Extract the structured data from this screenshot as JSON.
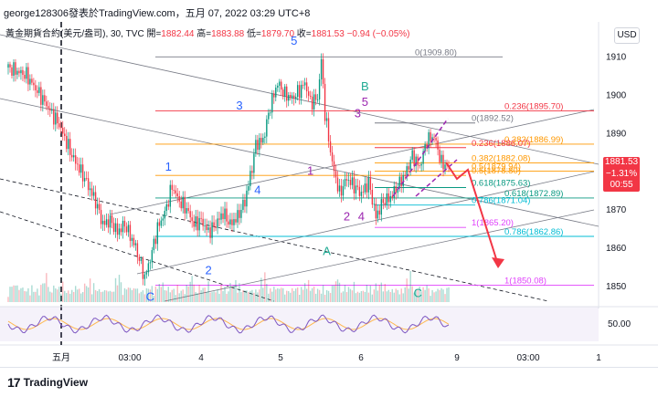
{
  "header": {
    "text": "george128306發表於TradingView.com，五月 07, 2022 03:29 UTC+8"
  },
  "legend": {
    "title": "黃金期貨合約(美元/盎司), 30, TVC",
    "open_label": "開",
    "open": "1882.44",
    "high_label": "高",
    "high": "1883.88",
    "low_label": "低",
    "low": "1879.70",
    "close_label": "收",
    "close": "1881.53",
    "change": "−0.94 (−0.05%)"
  },
  "currency": "USD",
  "price_tag": {
    "price": "1881.53",
    "pct": "−1.31%",
    "countdown": "00:55"
  },
  "brand": "TradingView",
  "colors": {
    "up": "#089981",
    "down": "#f23645",
    "wave_blue": "#2962ff",
    "wave_teal": "#22ab94",
    "wave_purple": "#9c27b0",
    "fib_red": "#f23645",
    "fib_orange": "#ff9800",
    "fib_green": "#089981",
    "fib_cyan": "#00bcd4",
    "fib_gray": "#787b86",
    "fib_magenta": "#e040fb",
    "osc_line": "#7e57c2",
    "osc_signal": "#ffb74d"
  },
  "chart_data": {
    "type": "candlestick",
    "instrument": "黃金期貨合約(美元/盎司)",
    "timeframe": "30",
    "y_ticks": [
      1850,
      1860,
      1870,
      1880,
      1890,
      1900,
      1910
    ],
    "y_range": [
      1844,
      1918
    ],
    "x_tick_labels": [
      "五月",
      "03:00",
      "4",
      "5",
      "6",
      "9",
      "03:00",
      "1"
    ],
    "price_path": [
      [
        0,
        1907
      ],
      [
        10,
        1905
      ],
      [
        20,
        1898
      ],
      [
        28,
        1892
      ],
      [
        35,
        1884
      ],
      [
        42,
        1878
      ],
      [
        48,
        1872
      ],
      [
        52,
        1866
      ],
      [
        56,
        1867
      ],
      [
        60,
        1864
      ],
      [
        64,
        1866
      ],
      [
        70,
        1860
      ],
      [
        75,
        1852
      ],
      [
        78,
        1857
      ],
      [
        82,
        1865
      ],
      [
        86,
        1869
      ],
      [
        90,
        1876
      ],
      [
        94,
        1872
      ],
      [
        98,
        1870
      ],
      [
        102,
        1866
      ],
      [
        106,
        1867
      ],
      [
        110,
        1864
      ],
      [
        114,
        1866
      ],
      [
        118,
        1869
      ],
      [
        122,
        1866
      ],
      [
        126,
        1868
      ],
      [
        130,
        1872
      ],
      [
        134,
        1881
      ],
      [
        136,
        1887
      ],
      [
        140,
        1888
      ],
      [
        144,
        1897
      ],
      [
        148,
        1903
      ],
      [
        152,
        1900
      ],
      [
        156,
        1899
      ],
      [
        160,
        1901
      ],
      [
        163,
        1903
      ],
      [
        166,
        1898
      ],
      [
        170,
        1899
      ],
      [
        172,
        1909
      ],
      [
        174,
        1895
      ],
      [
        178,
        1882
      ],
      [
        182,
        1874
      ],
      [
        186,
        1878
      ],
      [
        190,
        1876
      ],
      [
        194,
        1874
      ],
      [
        198,
        1877
      ],
      [
        202,
        1868
      ],
      [
        206,
        1872
      ],
      [
        210,
        1873
      ],
      [
        214,
        1876
      ],
      [
        218,
        1879
      ],
      [
        222,
        1884
      ],
      [
        226,
        1881
      ],
      [
        230,
        1888
      ],
      [
        234,
        1889
      ],
      [
        238,
        1882
      ],
      [
        242,
        1881
      ]
    ],
    "total_bars": 243,
    "volume_levels": [
      0.25,
      0.3,
      0.35,
      0.4,
      0.3,
      0.35,
      0.5,
      0.45,
      0.4,
      0.55,
      0.6,
      0.5,
      0.4,
      0.7,
      0.55,
      0.5,
      0.45,
      0.4,
      0.35,
      0.5,
      0.6,
      0.55,
      0.45,
      0.35,
      0.3,
      0.35,
      0.4,
      0.9,
      0.5,
      0.45,
      0.4,
      0.35,
      0.4,
      0.5,
      0.6,
      0.7,
      0.45,
      0.4,
      0.35,
      0.3
    ],
    "fib_levels": [
      {
        "label": "0(1909.80)",
        "value": 1909.8,
        "color_key": "fib_gray"
      },
      {
        "label": "0.236(1895.70)",
        "value": 1895.7,
        "color_key": "fib_red"
      },
      {
        "label": "0(1892.52)",
        "value": 1892.52,
        "color_key": "fib_gray"
      },
      {
        "label": "0.382(1886.99)",
        "value": 1886.99,
        "color_key": "fib_orange"
      },
      {
        "label": "0.236(1886.07)",
        "value": 1886.07,
        "color_key": "fib_red"
      },
      {
        "label": "0.382(1882.08)",
        "value": 1882.08,
        "color_key": "fib_orange"
      },
      {
        "label": "0.5(1879.94)",
        "value": 1879.94,
        "color_key": "fib_orange"
      },
      {
        "label": "0.5(1878.80)",
        "value": 1878.8,
        "color_key": "fib_orange"
      },
      {
        "label": "0.618(1875.63)",
        "value": 1875.63,
        "color_key": "fib_green"
      },
      {
        "label": "0.618(1872.89)",
        "value": 1872.89,
        "color_key": "fib_green"
      },
      {
        "label": "0.786(1871.04)",
        "value": 1871.04,
        "color_key": "fib_cyan"
      },
      {
        "label": "1(1865.20)",
        "value": 1865.2,
        "color_key": "fib_magenta"
      },
      {
        "label": "0.786(1862.86)",
        "value": 1862.86,
        "color_key": "fib_cyan"
      },
      {
        "label": "1(1850.08)",
        "value": 1850.08,
        "color_key": "fib_magenta"
      }
    ],
    "wave_labels": [
      {
        "text": "C",
        "bar": 78,
        "price": 1846,
        "color_key": "wave_blue"
      },
      {
        "text": "1",
        "bar": 88,
        "price": 1880,
        "color_key": "wave_blue"
      },
      {
        "text": "2",
        "bar": 110,
        "price": 1853,
        "color_key": "wave_blue"
      },
      {
        "text": "3",
        "bar": 127,
        "price": 1896,
        "color_key": "wave_blue"
      },
      {
        "text": "4",
        "bar": 137,
        "price": 1874,
        "color_key": "wave_blue"
      },
      {
        "text": "5",
        "bar": 157,
        "price": 1913,
        "color_key": "wave_blue"
      },
      {
        "text": "A",
        "bar": 175,
        "price": 1858,
        "color_key": "wave_teal"
      },
      {
        "text": "B",
        "bar": 196,
        "price": 1901,
        "color_key": "wave_teal"
      },
      {
        "text": "C",
        "bar": 225,
        "price": 1847,
        "color_key": "wave_teal"
      },
      {
        "text": "1",
        "bar": 166,
        "price": 1879,
        "color_key": "wave_purple"
      },
      {
        "text": "2",
        "bar": 186,
        "price": 1867,
        "color_key": "wave_purple"
      },
      {
        "text": "3",
        "bar": 192,
        "price": 1894,
        "color_key": "wave_purple"
      },
      {
        "text": "4",
        "bar": 194,
        "price": 1867,
        "color_key": "wave_purple"
      },
      {
        "text": "5",
        "bar": 196,
        "price": 1897,
        "color_key": "wave_purple"
      }
    ],
    "oscillator": {
      "level_label": "50.00"
    }
  }
}
